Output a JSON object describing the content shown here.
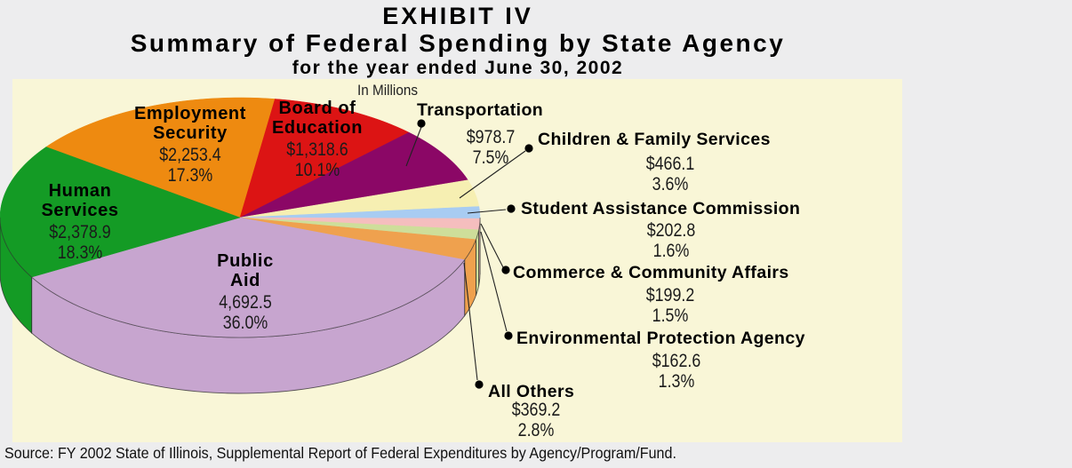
{
  "title": {
    "line1": "EXHIBIT IV",
    "line2": "Summary of Federal Spending by State Agency",
    "line3": "for the year ended June 30, 2002"
  },
  "units_note": "In Millions",
  "source": "Source: FY 2002 State of Illinois, Supplemental Report of Federal Expenditures by Agency/Program/Fund.",
  "chart_data": {
    "type": "pie",
    "title": "Summary of Federal Spending by State Agency for the year ended June 30, 2002",
    "units": "In Millions",
    "style": "3d-pie",
    "direction": "clockwise",
    "start_angle_deg": 143.9,
    "background_color": "#F9F6D7",
    "slices": [
      {
        "label": "Employment Security",
        "value_millions": 2253.4,
        "display_value": "$2,253.4",
        "pct": 17.3,
        "display_pct": "17.3%",
        "color": "#EE8A10"
      },
      {
        "label": "Board of Education",
        "value_millions": 1318.6,
        "display_value": "$1,318.6",
        "pct": 10.1,
        "display_pct": "10.1%",
        "color": "#DC1414"
      },
      {
        "label": "Transportation",
        "value_millions": 978.7,
        "display_value": "$978.7",
        "pct": 7.5,
        "display_pct": "7.5%",
        "color": "#8B0766"
      },
      {
        "label": "Children & Family Services",
        "value_millions": 466.1,
        "display_value": "$466.1",
        "pct": 3.6,
        "display_pct": "3.6%",
        "color": "#F6EFB2"
      },
      {
        "label": "Student Assistance Commission",
        "value_millions": 202.8,
        "display_value": "$202.8",
        "pct": 1.6,
        "display_pct": "1.6%",
        "color": "#A8CCF2"
      },
      {
        "label": "Commerce & Community Affairs",
        "value_millions": 199.2,
        "display_value": "$199.2",
        "pct": 1.5,
        "display_pct": "1.5%",
        "color": "#F5BEBE"
      },
      {
        "label": "Environmental Protection Agency",
        "value_millions": 162.6,
        "display_value": "$162.6",
        "pct": 1.3,
        "display_pct": "1.3%",
        "color": "#CEDE9A"
      },
      {
        "label": "All Others",
        "value_millions": 369.2,
        "display_value": "$369.2",
        "pct": 2.8,
        "display_pct": "2.8%",
        "color": "#EFA14E"
      },
      {
        "label": "Public Aid",
        "value_millions": 4692.5,
        "display_value": "4,692.5",
        "pct": 36.0,
        "display_pct": "36.0%",
        "color": "#C7A5CF"
      },
      {
        "label": "Human Services",
        "value_millions": 2378.9,
        "display_value": "$2,378.9",
        "pct": 18.3,
        "display_pct": "18.3%",
        "color": "#149B25"
      }
    ]
  }
}
